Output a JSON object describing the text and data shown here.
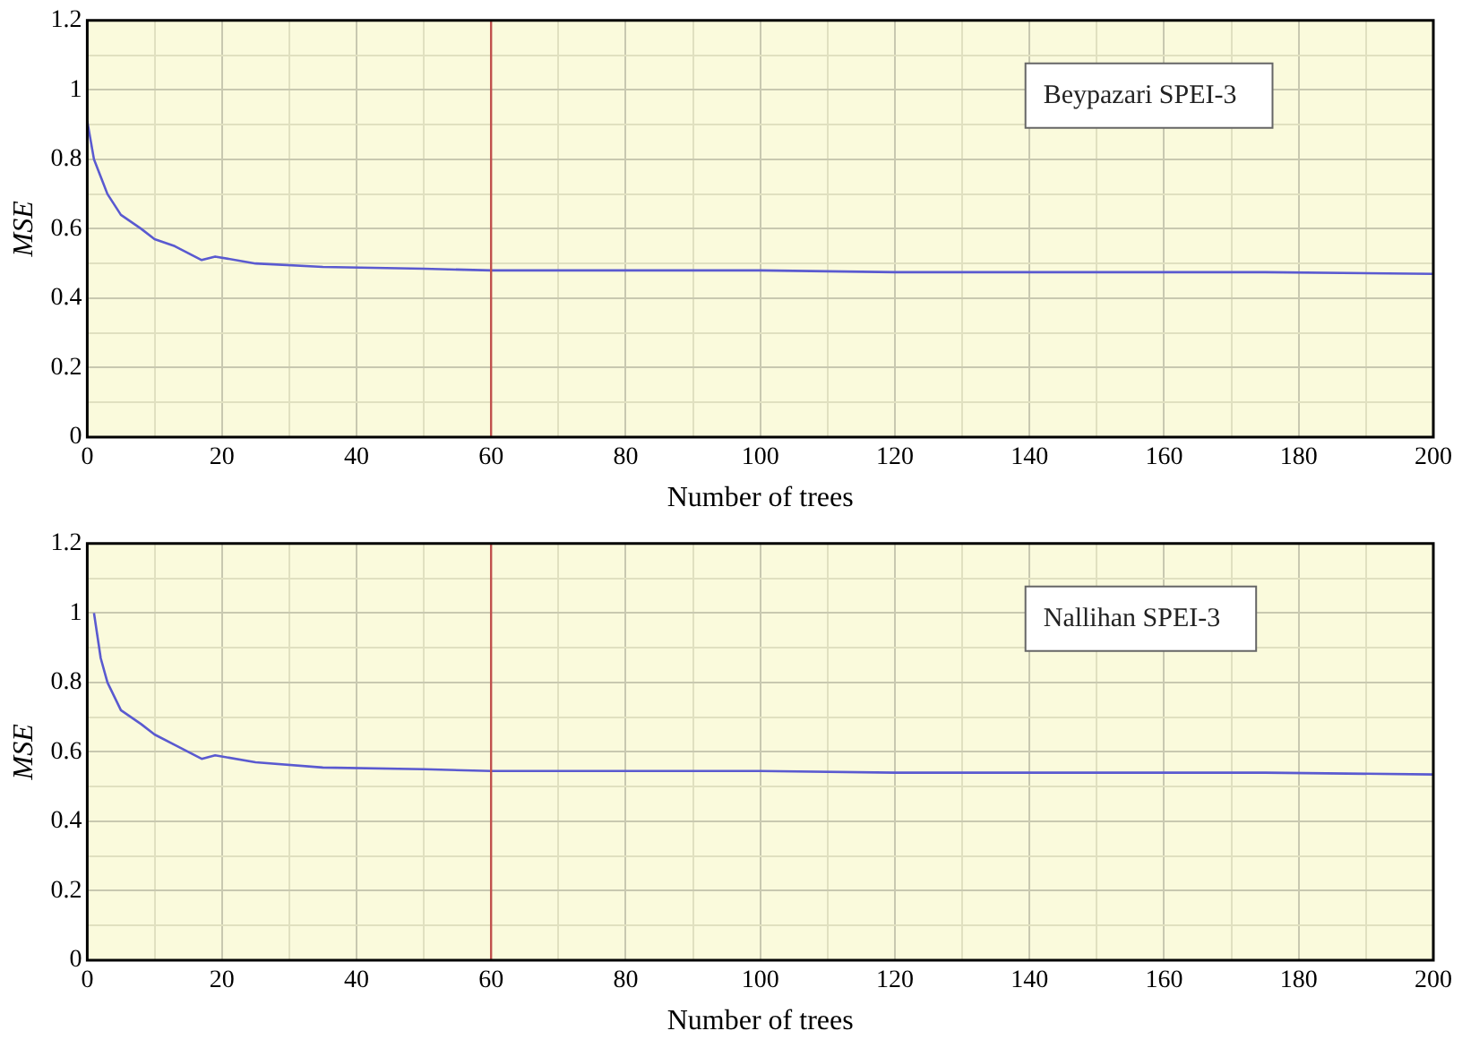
{
  "chart_data": [
    {
      "type": "line",
      "xlabel": "Number of trees",
      "ylabel": "MSE",
      "annotations": [
        "Beypazari SPEI-3"
      ],
      "series": [
        {
          "color": "#5a5ad0",
          "x": [
            0,
            1,
            2,
            3,
            5,
            8,
            10,
            13,
            17,
            19,
            25,
            35,
            50,
            60,
            80,
            100,
            120,
            150,
            175,
            200
          ],
          "values": [
            0.91,
            0.8,
            0.75,
            0.7,
            0.64,
            0.6,
            0.57,
            0.55,
            0.51,
            0.52,
            0.5,
            0.49,
            0.485,
            0.48,
            0.48,
            0.48,
            0.475,
            0.475,
            0.475,
            0.47
          ]
        }
      ],
      "xlim": [
        0,
        200
      ],
      "xticks": [
        0,
        {
          "value": 10,
          "label": null
        },
        20,
        {
          "value": 30,
          "label": null
        },
        40,
        {
          "value": 50,
          "label": null
        },
        60,
        {
          "value": 70,
          "label": null
        },
        80,
        {
          "value": 90,
          "label": null
        },
        100,
        {
          "value": 110,
          "label": null
        },
        120,
        {
          "value": 130,
          "label": null
        },
        140,
        {
          "value": 150,
          "label": null
        },
        160,
        {
          "value": 170,
          "label": null
        },
        180,
        {
          "value": 190,
          "label": null
        },
        200
      ],
      "ylim": [
        0,
        1.2
      ],
      "yticks": [
        0,
        {
          "value": 0.1,
          "label": null
        },
        0.2,
        {
          "value": 0.3,
          "label": null
        },
        0.4,
        {
          "value": 0.5,
          "label": null
        },
        0.6,
        {
          "value": 0.7,
          "label": null
        },
        0.8,
        {
          "value": 0.9,
          "label": null
        },
        1,
        {
          "value": 1.1,
          "label": null
        },
        1.2
      ],
      "ref_lines": [
        {
          "axis": "x",
          "value": 60,
          "color": "#c0504d"
        }
      ],
      "grid": true,
      "legend": false,
      "marker": "none",
      "line_style": "solid"
    },
    {
      "type": "line",
      "xlabel": "Number of trees",
      "ylabel": "MSE",
      "annotations": [
        "Nallihan SPEI-3"
      ],
      "series": [
        {
          "color": "#5a5ad0",
          "x": [
            1,
            2,
            3,
            5,
            8,
            10,
            13,
            17,
            19,
            25,
            35,
            50,
            60,
            80,
            100,
            120,
            150,
            175,
            200
          ],
          "values": [
            1.0,
            0.87,
            0.8,
            0.72,
            0.68,
            0.65,
            0.62,
            0.58,
            0.59,
            0.57,
            0.555,
            0.55,
            0.545,
            0.545,
            0.545,
            0.54,
            0.54,
            0.54,
            0.535
          ]
        }
      ],
      "xlim": [
        0,
        200
      ],
      "xticks": [
        0,
        {
          "value": 10,
          "label": null
        },
        20,
        {
          "value": 30,
          "label": null
        },
        40,
        {
          "value": 50,
          "label": null
        },
        60,
        {
          "value": 70,
          "label": null
        },
        80,
        {
          "value": 90,
          "label": null
        },
        100,
        {
          "value": 110,
          "label": null
        },
        120,
        {
          "value": 130,
          "label": null
        },
        140,
        {
          "value": 150,
          "label": null
        },
        160,
        {
          "value": 170,
          "label": null
        },
        180,
        {
          "value": 190,
          "label": null
        },
        200
      ],
      "ylim": [
        0,
        1.2
      ],
      "yticks": [
        0,
        {
          "value": 0.1,
          "label": null
        },
        0.2,
        {
          "value": 0.3,
          "label": null
        },
        0.4,
        {
          "value": 0.5,
          "label": null
        },
        0.6,
        {
          "value": 0.7,
          "label": null
        },
        0.8,
        {
          "value": 0.9,
          "label": null
        },
        1,
        {
          "value": 1.1,
          "label": null
        },
        1.2
      ],
      "ref_lines": [
        {
          "axis": "x",
          "value": 60,
          "color": "#c0504d"
        }
      ],
      "grid": true,
      "legend": false,
      "marker": "none",
      "line_style": "solid"
    }
  ]
}
